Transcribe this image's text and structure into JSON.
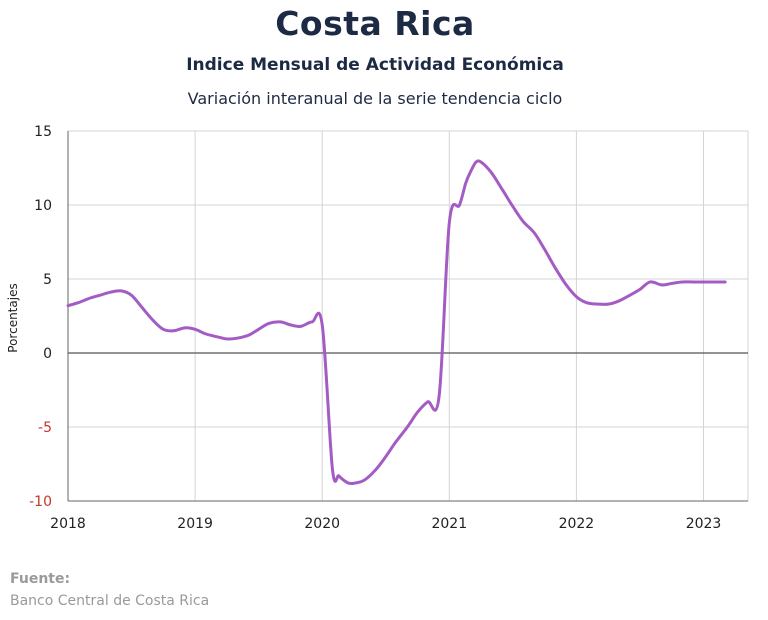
{
  "header": {
    "title": "Costa Rica",
    "subtitle": "Indice Mensual de  Actividad Económica",
    "subtitle2": "Variación interanual de la serie tendencia ciclo"
  },
  "source": {
    "label": "Fuente:",
    "text": "Banco Central de Costa Rica"
  },
  "chart_data": {
    "type": "line",
    "title": "Costa Rica",
    "ylabel": "Porcentajes",
    "ylim": [
      -10,
      15
    ],
    "yticks": [
      15,
      10,
      5,
      0,
      -5,
      -10
    ],
    "ytick_labels": [
      "15",
      "10",
      "5",
      "0",
      "-5",
      "-10"
    ],
    "xlim": [
      2018,
      2023.35
    ],
    "xticks": [
      2018,
      2019,
      2020,
      2021,
      2022,
      2023
    ],
    "xtick_labels": [
      "2018",
      "2019",
      "2020",
      "2021",
      "2022",
      "2023"
    ],
    "grid": true,
    "series": [
      {
        "color": "#a45cc4",
        "x": [
          2018.0,
          2018.08,
          2018.17,
          2018.25,
          2018.33,
          2018.42,
          2018.5,
          2018.58,
          2018.67,
          2018.75,
          2018.83,
          2018.92,
          2019.0,
          2019.08,
          2019.17,
          2019.25,
          2019.33,
          2019.42,
          2019.5,
          2019.58,
          2019.67,
          2019.75,
          2019.83,
          2019.92,
          2020.0,
          2020.08,
          2020.13,
          2020.17,
          2020.21,
          2020.25,
          2020.33,
          2020.42,
          2020.5,
          2020.58,
          2020.67,
          2020.75,
          2020.83,
          2020.92,
          2021.0,
          2021.08,
          2021.13,
          2021.17,
          2021.21,
          2021.25,
          2021.33,
          2021.42,
          2021.5,
          2021.58,
          2021.67,
          2021.75,
          2021.83,
          2021.92,
          2022.0,
          2022.08,
          2022.17,
          2022.25,
          2022.33,
          2022.42,
          2022.5,
          2022.58,
          2022.67,
          2022.75,
          2022.83,
          2022.92,
          2023.0,
          2023.08,
          2023.17
        ],
        "values": [
          3.2,
          3.4,
          3.7,
          3.9,
          4.1,
          4.2,
          3.9,
          3.1,
          2.2,
          1.6,
          1.5,
          1.7,
          1.6,
          1.3,
          1.1,
          0.95,
          1.0,
          1.2,
          1.6,
          2.0,
          2.1,
          1.9,
          1.8,
          2.1,
          1.9,
          -7.8,
          -8.3,
          -8.6,
          -8.8,
          -8.8,
          -8.6,
          -7.9,
          -7.0,
          -6.0,
          -5.0,
          -4.0,
          -3.3,
          -2.9,
          8.8,
          10.0,
          11.5,
          12.3,
          12.9,
          12.9,
          12.2,
          11.0,
          9.9,
          8.9,
          8.1,
          7.0,
          5.8,
          4.6,
          3.8,
          3.4,
          3.3,
          3.3,
          3.5,
          3.9,
          4.3,
          4.8,
          4.6,
          4.7,
          4.8,
          4.8,
          4.8,
          4.8,
          4.8
        ]
      }
    ]
  }
}
